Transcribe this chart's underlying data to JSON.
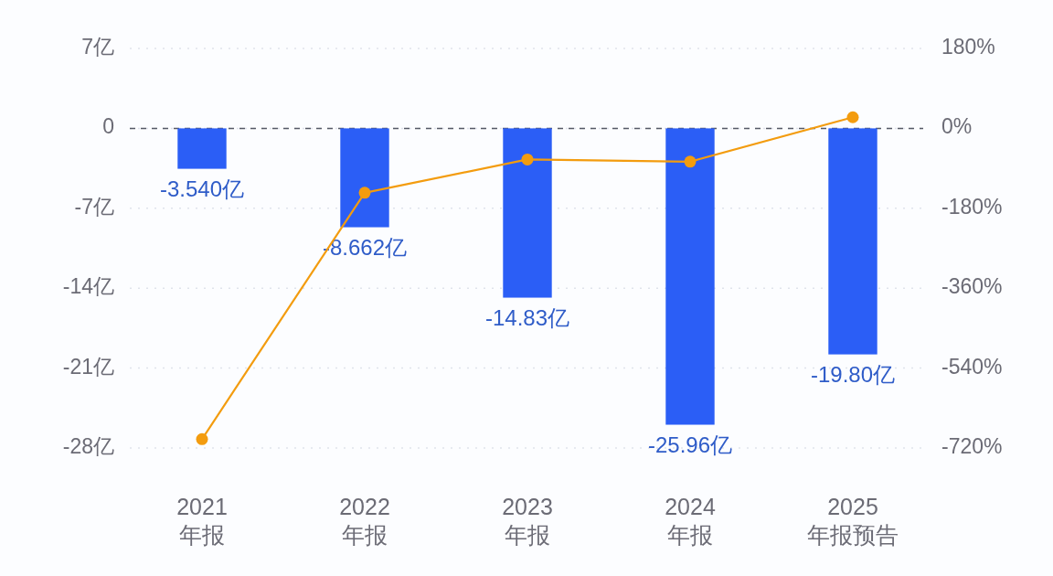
{
  "chart_data": {
    "type": "bar",
    "categories": [
      "2021\n年报",
      "2022\n年报",
      "2023\n年报",
      "2024\n年报",
      "2025\n年报预告"
    ],
    "series": [
      {
        "color": "#2b5ef6",
        "values": [
          -3.54,
          -8.662,
          -14.83,
          -25.96,
          -19.8
        ],
        "value_labels": [
          "-3.540亿",
          "-8.662亿",
          "-14.83亿",
          "-25.96亿",
          "-19.80亿"
        ]
      },
      {
        "type": "line",
        "axis": "y2",
        "color": "#f39c0f",
        "values": [
          -700,
          -145,
          -70,
          -75,
          25
        ],
        "marker": "circle"
      }
    ],
    "ylim": [
      -28,
      7
    ],
    "yticks": [
      {
        "value": 7,
        "label": "7亿"
      },
      0,
      {
        "value": -7,
        "label": "-7亿"
      },
      {
        "value": -14,
        "label": "-14亿"
      },
      {
        "value": -21,
        "label": "-21亿"
      },
      {
        "value": -28,
        "label": "-28亿"
      }
    ],
    "y2lim": [
      -720,
      180
    ],
    "y2ticks": [
      {
        "value": 180,
        "label": "180%"
      },
      {
        "value": 0,
        "label": "0%"
      },
      {
        "value": -180,
        "label": "-180%"
      },
      {
        "value": -360,
        "label": "-360%"
      },
      {
        "value": -540,
        "label": "-540%"
      },
      {
        "value": -720,
        "label": "-720%"
      }
    ],
    "ref_lines": [
      {
        "axis": "y",
        "value": 0,
        "color": "#555a66",
        "line_style": "dashed"
      }
    ],
    "grid": "y"
  }
}
